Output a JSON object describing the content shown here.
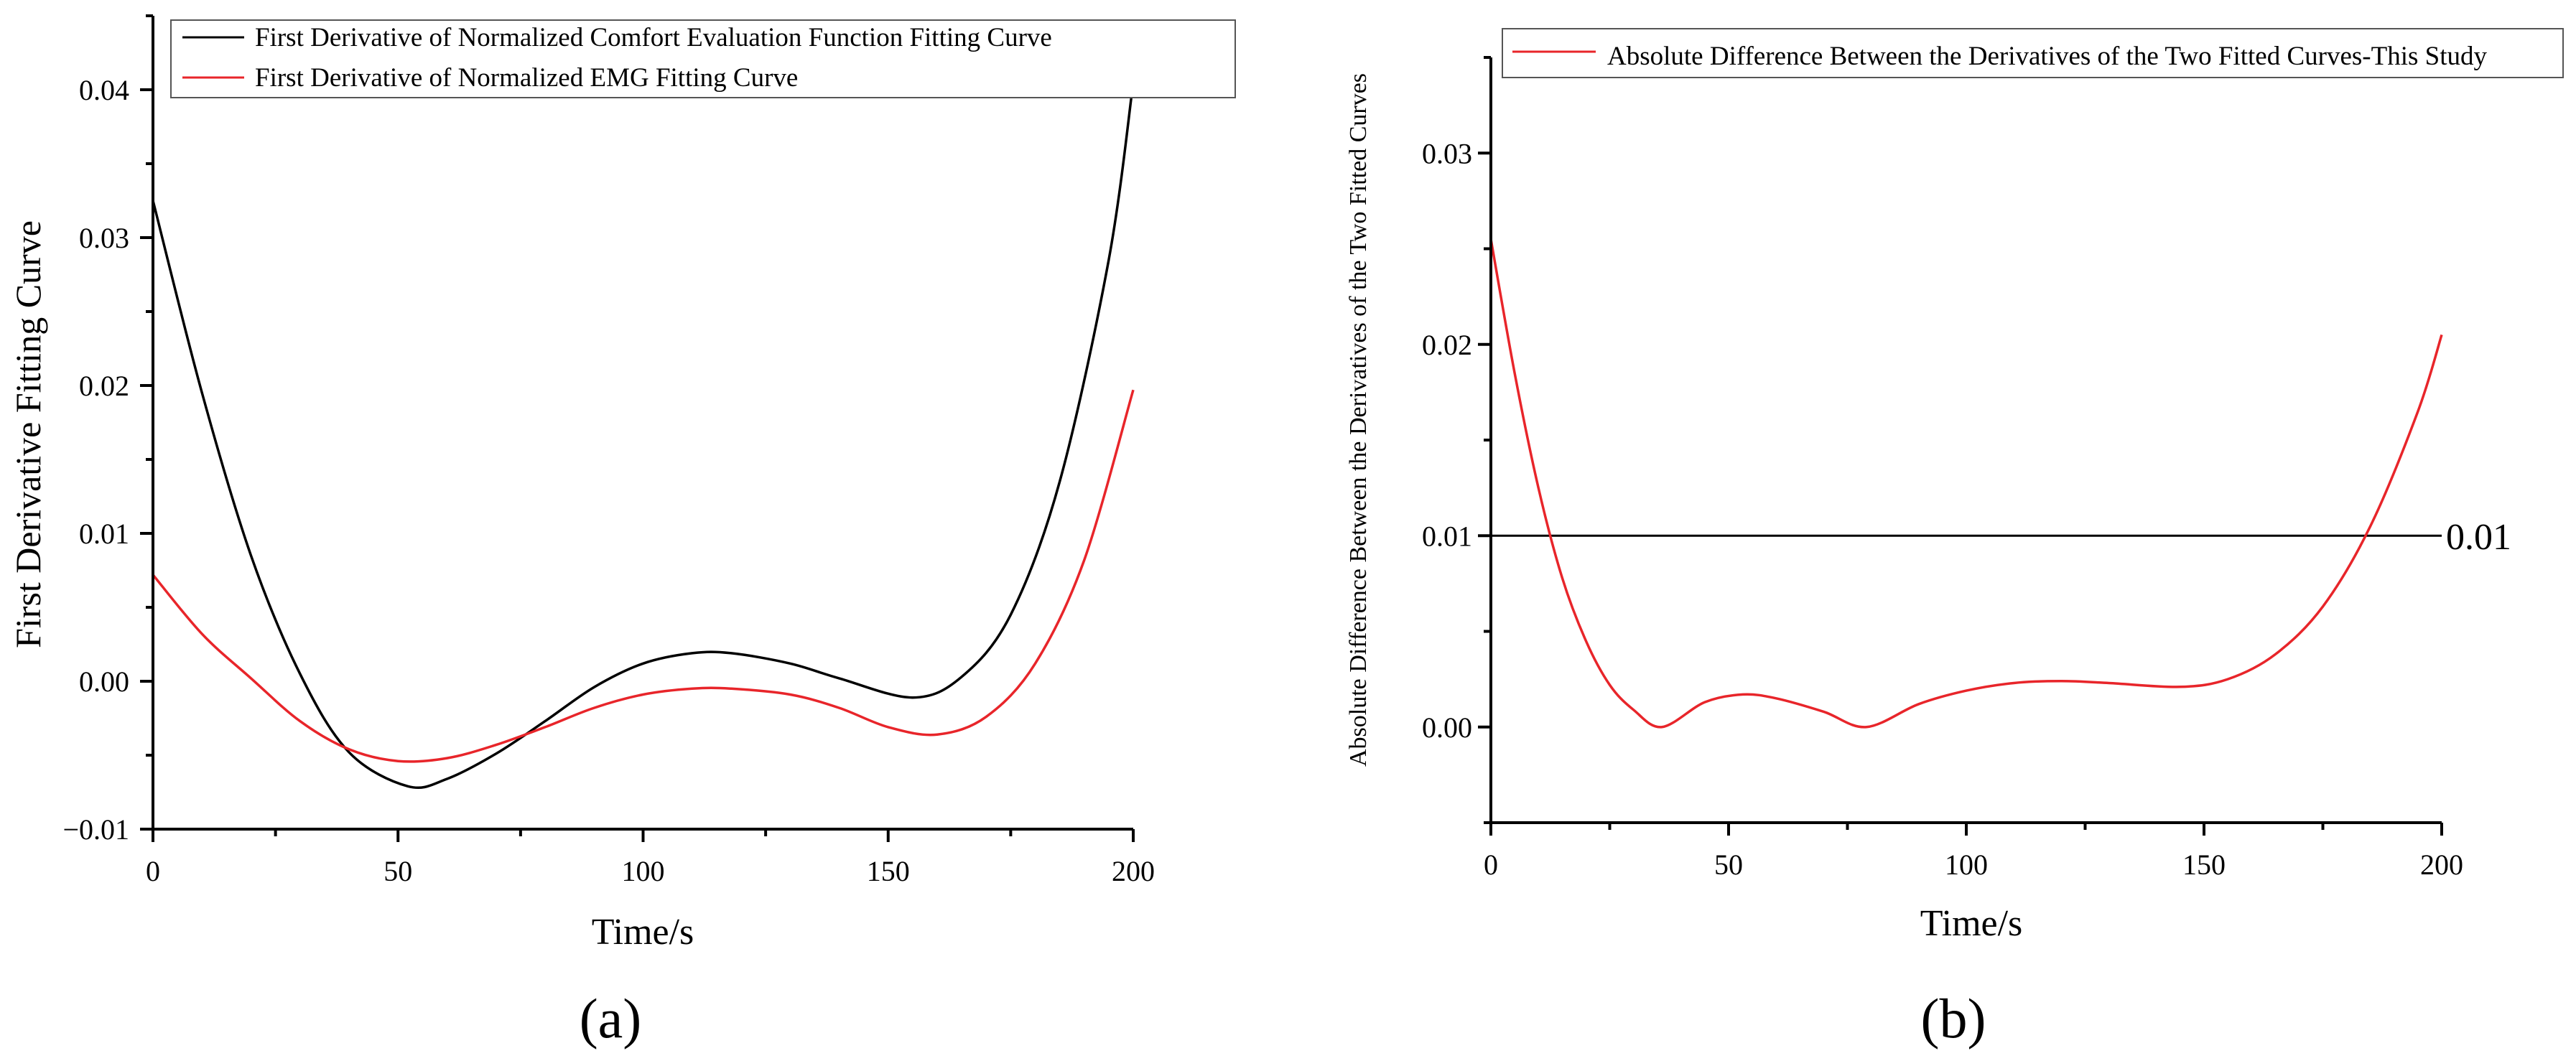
{
  "chart_data": [
    {
      "type": "line",
      "panel_label": "(a)",
      "xlabel": "Time/s",
      "ylabel": "First Derivative Fitting Curve",
      "xlim": [
        0,
        200
      ],
      "ylim": [
        -0.01,
        0.045
      ],
      "x_ticks": [
        0,
        50,
        100,
        150,
        200
      ],
      "x_tick_labels": [
        "0",
        "50",
        "100",
        "150",
        "200"
      ],
      "y_ticks": [
        -0.01,
        0.0,
        0.01,
        0.02,
        0.03,
        0.04
      ],
      "y_tick_labels": [
        "−0.01",
        "0.00",
        "0.01",
        "0.02",
        "0.03",
        "0.04"
      ],
      "legend": [
        "First Derivative of Normalized Comfort Evaluation Function Fitting Curve",
        "First Derivative of Normalized EMG Fitting Curve"
      ],
      "series": [
        {
          "name": "First Derivative of Normalized Comfort Evaluation Function Fitting Curve",
          "color": "#000000",
          "x": [
            0,
            10,
            20,
            30,
            40,
            52,
            60,
            70,
            80,
            90,
            100,
            110,
            118,
            130,
            140,
            155,
            165,
            175,
            185,
            195,
            200
          ],
          "y": [
            0.0325,
            0.0195,
            0.0085,
            0.0005,
            -0.0048,
            -0.0071,
            -0.0066,
            -0.0049,
            -0.0027,
            -0.0004,
            0.0012,
            0.0019,
            0.0019,
            0.0012,
            0.0002,
            -0.0011,
            0.0003,
            0.0045,
            0.0135,
            0.0285,
            0.0405
          ]
        },
        {
          "name": "First Derivative of Normalized EMG Fitting Curve",
          "color": "#e8252a",
          "x": [
            0,
            10,
            20,
            30,
            40,
            50,
            60,
            70,
            80,
            90,
            100,
            110,
            118,
            130,
            140,
            150,
            160,
            170,
            180,
            190,
            200
          ],
          "y": [
            0.0072,
            0.0032,
            0.0002,
            -0.0027,
            -0.0046,
            -0.0054,
            -0.0052,
            -0.0043,
            -0.0031,
            -0.0018,
            -0.0009,
            -0.0005,
            -0.0005,
            -0.0009,
            -0.0018,
            -0.0031,
            -0.0036,
            -0.0024,
            0.0012,
            0.0082,
            0.0197
          ]
        }
      ]
    },
    {
      "type": "line",
      "panel_label": "(b)",
      "xlabel": "Time/s",
      "ylabel": "Absolute Difference Between the Derivatives of the Two Fitted Curves",
      "xlim": [
        0,
        200
      ],
      "ylim": [
        -0.005,
        0.035
      ],
      "x_ticks": [
        0,
        50,
        100,
        150,
        200
      ],
      "x_tick_labels": [
        "0",
        "50",
        "100",
        "150",
        "200"
      ],
      "y_ticks": [
        0.0,
        0.01,
        0.02,
        0.03
      ],
      "y_tick_labels": [
        "0.00",
        "0.01",
        "0.02",
        "0.03"
      ],
      "legend": [
        "Absolute Difference Between the Derivatives of the Two Fitted Curves-This Study"
      ],
      "reference_line": {
        "y": 0.01,
        "label": "0.01"
      },
      "series": [
        {
          "name": "Absolute Difference Between the Derivatives of the Two Fitted Curves-This Study",
          "color": "#e8252a",
          "x": [
            0,
            5,
            10,
            15,
            20,
            25,
            30,
            36,
            45,
            53,
            60,
            70,
            79,
            90,
            100,
            110,
            120,
            130,
            145,
            155,
            165,
            175,
            185,
            195,
            200
          ],
          "y": [
            0.0255,
            0.0185,
            0.0125,
            0.0078,
            0.0045,
            0.0022,
            0.0009,
            0.0,
            0.0013,
            0.0017,
            0.0015,
            0.0008,
            0.0,
            0.0012,
            0.0019,
            0.0023,
            0.0024,
            0.0023,
            0.0021,
            0.0025,
            0.0038,
            0.0063,
            0.0105,
            0.0165,
            0.0205
          ]
        }
      ]
    }
  ]
}
